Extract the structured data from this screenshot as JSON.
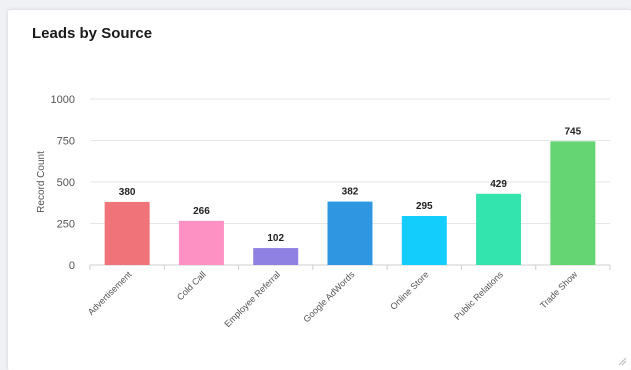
{
  "widget": {
    "title": "Leads by Source"
  },
  "chart_data": {
    "type": "bar",
    "title": "Leads by Source",
    "xlabel": "",
    "ylabel": "Record Count",
    "ylim": [
      0,
      1000
    ],
    "yticks": [
      "0",
      "250",
      "500",
      "750",
      "1000"
    ],
    "grid": true,
    "categories": [
      "Advertisement",
      "Cold Call",
      "Employee Referral",
      "Google AdWords",
      "Online Store",
      "Public Relations",
      "Trade Show"
    ],
    "values": [
      380,
      266,
      102,
      382,
      295,
      429,
      745
    ],
    "colors": [
      "#f0737a",
      "#fd91c4",
      "#8f81e2",
      "#2f97e2",
      "#13cdfc",
      "#34e4ae",
      "#65d574"
    ]
  }
}
